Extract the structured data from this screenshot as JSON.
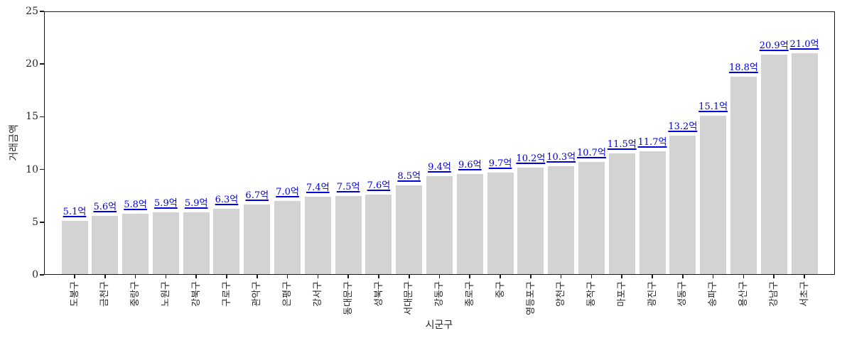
{
  "chart_data": {
    "type": "bar",
    "title": "",
    "xlabel": "시군구",
    "ylabel": "거래금액",
    "ylim": [
      0,
      25
    ],
    "yticks": [
      0,
      5,
      10,
      15,
      20,
      25
    ],
    "grid": false,
    "legend": "none",
    "bar_color": "#d3d3d3",
    "value_label_color": "#0000dd",
    "axis_color": "#1a1a1a",
    "categories": [
      "도봉구",
      "금천구",
      "중랑구",
      "노원구",
      "강북구",
      "구로구",
      "관악구",
      "은평구",
      "강서구",
      "동대문구",
      "성북구",
      "서대문구",
      "강동구",
      "종로구",
      "중구",
      "영등포구",
      "양천구",
      "동작구",
      "마포구",
      "광진구",
      "성동구",
      "송파구",
      "용산구",
      "강남구",
      "서초구"
    ],
    "values": [
      5.1,
      5.6,
      5.8,
      5.9,
      5.9,
      6.3,
      6.7,
      7.0,
      7.4,
      7.5,
      7.6,
      8.5,
      9.4,
      9.6,
      9.7,
      10.2,
      10.3,
      10.7,
      11.5,
      11.7,
      13.2,
      15.1,
      18.8,
      20.9,
      21.0
    ],
    "value_labels": [
      "5.1억",
      "5.6억",
      "5.8억",
      "5.9억",
      "5.9억",
      "6.3억",
      "6.7억",
      "7.0억",
      "7.4억",
      "7.5억",
      "7.6억",
      "8.5억",
      "9.4억",
      "9.6억",
      "9.7억",
      "10.2억",
      "10.3억",
      "10.7억",
      "11.5억",
      "11.7억",
      "13.2억",
      "15.1억",
      "18.8억",
      "20.9억",
      "21.0억"
    ],
    "value_unit": "억"
  }
}
